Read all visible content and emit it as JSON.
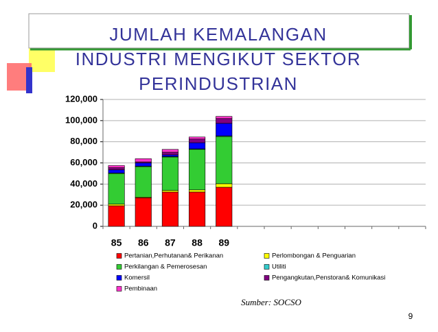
{
  "chart_data": {
    "type": "stacked_bar",
    "title": [
      "JUMLAH  KEMALANGAN",
      "INDUSTRI MENGIKUT SEKTOR",
      "PERINDUSTRIAN"
    ],
    "categories": [
      "85",
      "86",
      "87",
      "88",
      "89",
      null,
      null,
      null,
      null,
      null,
      null,
      null
    ],
    "series": [
      {
        "name": "Pertanian,Perhutanan& Perikanan",
        "color": "#ff0000",
        "values": [
          19500,
          27000,
          32500,
          32500,
          37000,
          null,
          null,
          null,
          null,
          null,
          null,
          null
        ]
      },
      {
        "name": "Perlombongan & Penguarian",
        "color": "#ffff00",
        "values": [
          1500,
          700,
          1500,
          2000,
          3300,
          null,
          null,
          null,
          null,
          null,
          null,
          null
        ]
      },
      {
        "name": "Perkilangan & Pemerosesan",
        "color": "#33cc33",
        "values": [
          29000,
          28800,
          31600,
          38300,
          44700,
          null,
          null,
          null,
          null,
          null,
          null,
          null
        ]
      },
      {
        "name": "Utiliti",
        "color": "#33cccc",
        "values": [
          500,
          500,
          500,
          500,
          600,
          null,
          null,
          null,
          null,
          null,
          null,
          null
        ]
      },
      {
        "name": "Komersil",
        "color": "#0000ff",
        "values": [
          3000,
          3000,
          1500,
          5800,
          11800,
          null,
          null,
          null,
          null,
          null,
          null,
          null
        ]
      },
      {
        "name": "Pengangkutan,Penstoran& Komunikasi",
        "color": "#800080",
        "values": [
          2000,
          1000,
          2500,
          3500,
          4600,
          null,
          null,
          null,
          null,
          null,
          null,
          null
        ]
      },
      {
        "name": "Pembinaan",
        "color": "#ff33cc",
        "values": [
          2000,
          3000,
          2700,
          1900,
          2000,
          null,
          null,
          null,
          null,
          null,
          null,
          null
        ]
      }
    ],
    "ylim": [
      0,
      120000
    ],
    "yticks": [
      0,
      {
        "value": 20000,
        "label": "20,000"
      },
      {
        "value": 40000,
        "label": "40,000"
      },
      {
        "value": 60000,
        "label": "60,000"
      },
      {
        "value": 80000,
        "label": "80,000"
      },
      {
        "value": 100000,
        "label": "100,000"
      },
      {
        "value": 120000,
        "label": "120,000"
      }
    ],
    "grid": true
  },
  "source": "Sumber: SOCSO",
  "page_number": "9"
}
